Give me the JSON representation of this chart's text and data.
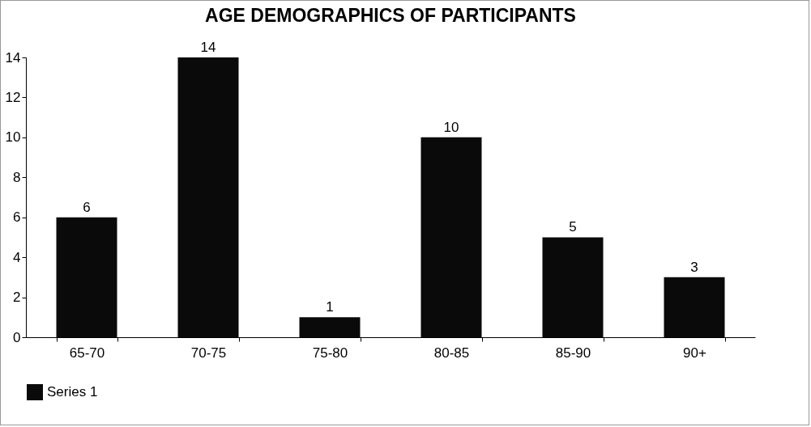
{
  "chart_data": {
    "type": "bar",
    "title": "AGE DEMOGRAPHICS OF PARTICIPANTS",
    "categories": [
      "65-70",
      "70-75",
      "75-80",
      "80-85",
      "85-90",
      "90+"
    ],
    "series": [
      {
        "name": "Series 1",
        "color": "#0a0a0a",
        "values": [
          6,
          14,
          1,
          10,
          5,
          3
        ]
      }
    ],
    "ylim": [
      0,
      14
    ],
    "yticks": [
      0,
      2,
      4,
      6,
      8,
      10,
      12,
      14
    ],
    "grid": false,
    "legend": "bottom",
    "data_labels": true
  }
}
